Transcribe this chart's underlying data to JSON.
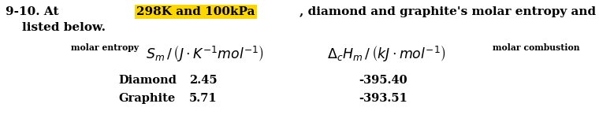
{
  "bg_color": "#ffffff",
  "text_color": "#000000",
  "highlight_color": "#FFD700",
  "prefix": "9-10. At ",
  "highlighted_text": "298K and 100kPa",
  "suffix": ", diamond and graphite's molar entropy and molar combustion heat are",
  "line2": "    listed below.",
  "header_label_left": "molar entropy",
  "header_math_left": "$S_{m}\\,/\\,\\left(J\\cdot K^{-1}mol^{-1}\\right)$",
  "header_math_right": "$\\Delta_{c}H_{m}\\,/\\,\\left(kJ\\cdot mol^{-1}\\right)$",
  "header_label_right": "molar combustion",
  "row1_name": "Diamond",
  "row1_entropy": "2.45",
  "row1_enthalpy": "-395.40",
  "row2_name": "Graphite",
  "row2_entropy": "5.71",
  "row2_enthalpy": "-393.51",
  "fontsize_main": 11,
  "fontsize_math": 12.5,
  "fontsize_small": 7.8,
  "fontsize_data": 10.5
}
